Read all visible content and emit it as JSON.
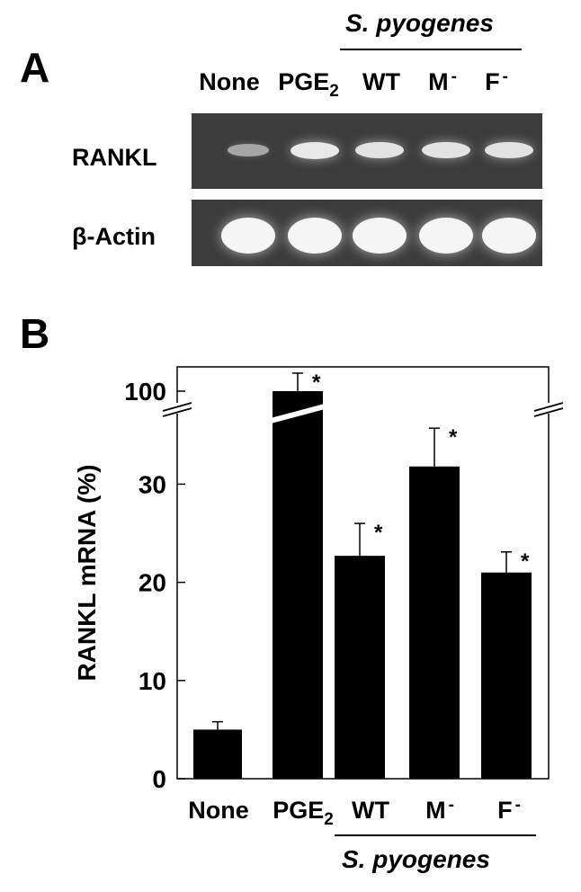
{
  "panel_a": {
    "letter": "A",
    "group_label": "S. pyogenes",
    "lanes": [
      {
        "base": "None",
        "sub": "",
        "sup": ""
      },
      {
        "base": "PGE",
        "sub": "2",
        "sup": ""
      },
      {
        "base": "WT",
        "sub": "",
        "sup": ""
      },
      {
        "base": "M",
        "sub": "",
        "sup": "-"
      },
      {
        "base": "F",
        "sub": "",
        "sup": "-"
      }
    ],
    "rows": [
      "RANKL",
      "β-Actin"
    ],
    "band_intensity": {
      "RANKL": [
        0.35,
        0.9,
        0.85,
        0.85,
        0.85
      ],
      "β-Actin": [
        1,
        1,
        1,
        1,
        1
      ]
    },
    "colors": {
      "gel": "#3c3c3c",
      "band": "#f2f2f2"
    }
  },
  "panel_b": {
    "letter": "B",
    "group_label": "S. pyogenes"
  },
  "chart_data": {
    "type": "bar",
    "categories": [
      {
        "base": "None",
        "sub": "",
        "sup": ""
      },
      {
        "base": "PGE",
        "sub": "2",
        "sup": ""
      },
      {
        "base": "WT",
        "sub": "",
        "sup": ""
      },
      {
        "base": "M",
        "sub": "",
        "sup": "-"
      },
      {
        "base": "F",
        "sub": "",
        "sup": "-"
      }
    ],
    "values": [
      5,
      100,
      22.7,
      31.8,
      21
    ],
    "errors": [
      0.8,
      3,
      3.3,
      3.9,
      2.1
    ],
    "significant": [
      false,
      true,
      true,
      true,
      true
    ],
    "significance_marker": "*",
    "ylabel": "RANKL mRNA (%)",
    "yticks": [
      0,
      10,
      20,
      30,
      100
    ],
    "axis_break": {
      "lower_max": 37,
      "upper_tick": 100
    },
    "bar_color": "#000000"
  }
}
